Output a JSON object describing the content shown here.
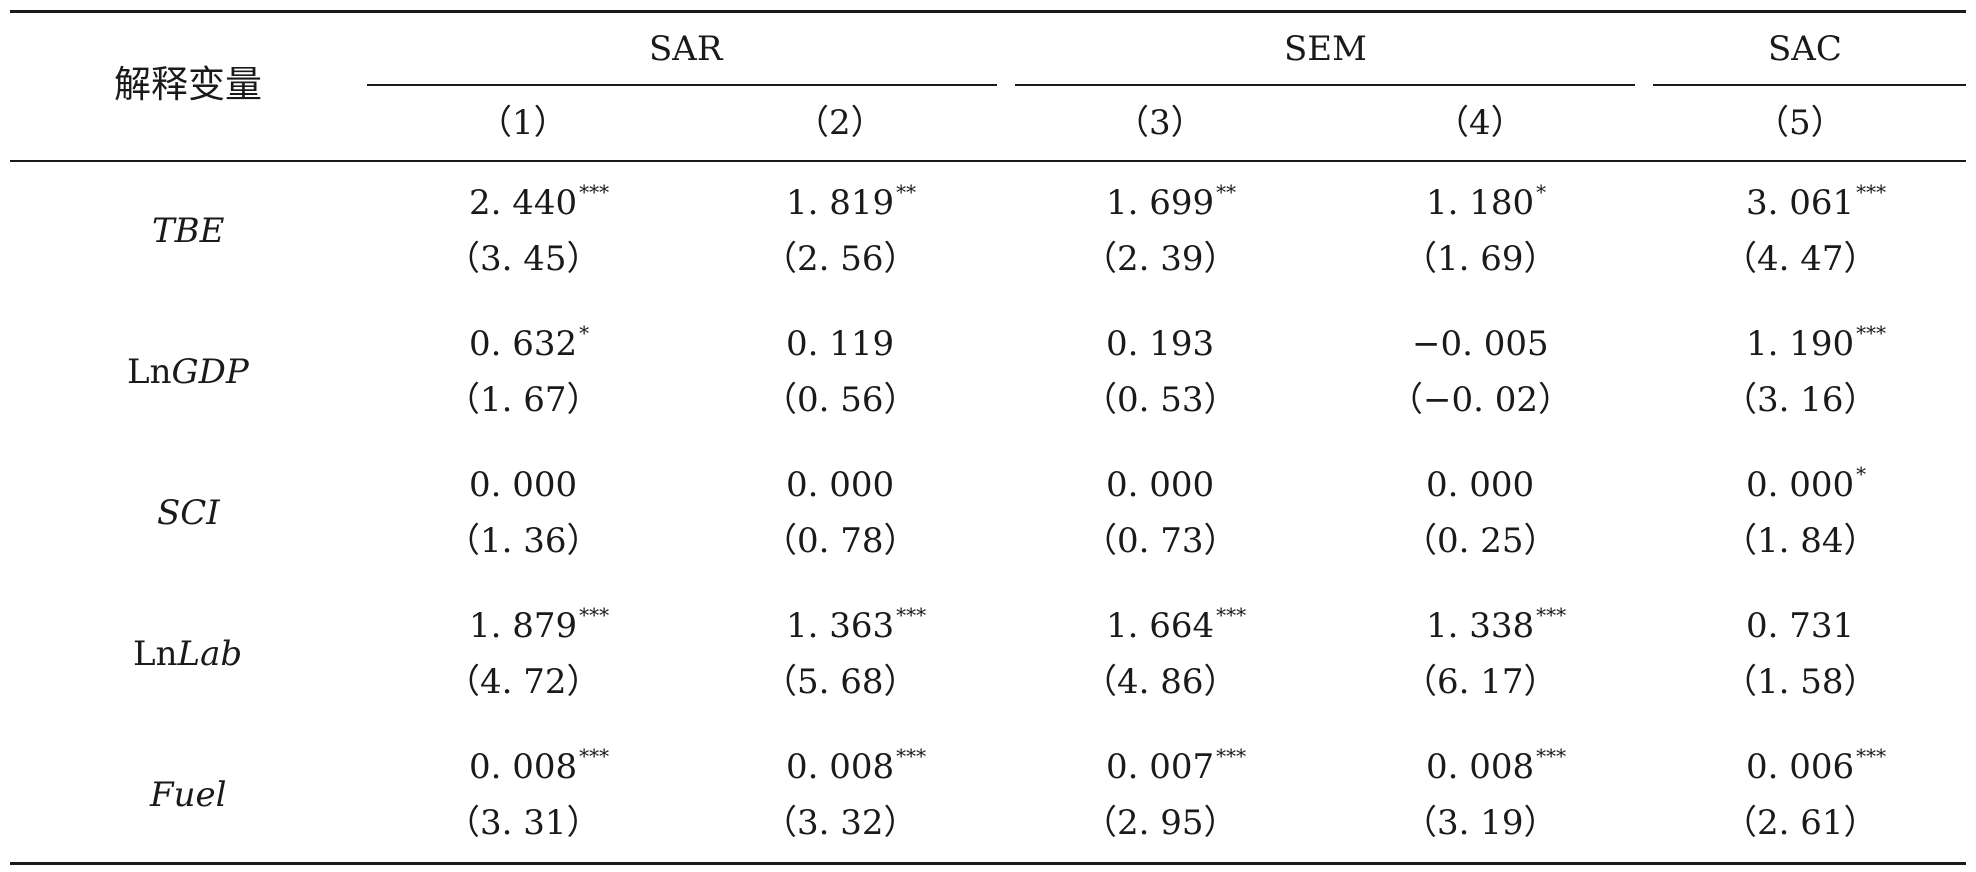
{
  "table": {
    "stub_header": "解释变量",
    "groups": [
      {
        "label": "SAR",
        "span": [
          0,
          1
        ]
      },
      {
        "label": "SEM",
        "span": [
          2,
          3
        ]
      },
      {
        "label": "SAC",
        "span": [
          4,
          4
        ]
      }
    ],
    "columns": [
      "（1）",
      "（2）",
      "（3）",
      "（4）",
      "（5）"
    ],
    "rows": [
      {
        "var_parts": [
          {
            "text": "TBE",
            "italic": true
          }
        ],
        "cells": [
          {
            "coef": "2. 440",
            "stars": "***",
            "t": "（3. 45）"
          },
          {
            "coef": "1. 819",
            "stars": "**",
            "t": "（2. 56）"
          },
          {
            "coef": "1. 699",
            "stars": "**",
            "t": "（2. 39）"
          },
          {
            "coef": "1. 180",
            "stars": "*",
            "t": "（1. 69）"
          },
          {
            "coef": "3. 061",
            "stars": "***",
            "t": "（4. 47）"
          }
        ]
      },
      {
        "var_parts": [
          {
            "text": "Ln",
            "italic": false
          },
          {
            "text": "GDP",
            "italic": true
          }
        ],
        "cells": [
          {
            "coef": "0. 632",
            "stars": "*",
            "t": "（1. 67）"
          },
          {
            "coef": "0. 119",
            "stars": "",
            "t": "（0. 56）"
          },
          {
            "coef": "0. 193",
            "stars": "",
            "t": "（0. 53）"
          },
          {
            "coef": "−0. 005",
            "stars": "",
            "t": "（−0. 02）"
          },
          {
            "coef": "1. 190",
            "stars": "***",
            "t": "（3. 16）"
          }
        ]
      },
      {
        "var_parts": [
          {
            "text": "SCI",
            "italic": true
          }
        ],
        "cells": [
          {
            "coef": "0. 000",
            "stars": "",
            "t": "（1. 36）"
          },
          {
            "coef": "0. 000",
            "stars": "",
            "t": "（0. 78）"
          },
          {
            "coef": "0. 000",
            "stars": "",
            "t": "（0. 73）"
          },
          {
            "coef": "0. 000",
            "stars": "",
            "t": "（0. 25）"
          },
          {
            "coef": "0. 000",
            "stars": "*",
            "t": "（1. 84）"
          }
        ]
      },
      {
        "var_parts": [
          {
            "text": "Ln",
            "italic": false
          },
          {
            "text": "Lab",
            "italic": true
          }
        ],
        "cells": [
          {
            "coef": "1. 879",
            "stars": "***",
            "t": "（4. 72）"
          },
          {
            "coef": "1. 363",
            "stars": "***",
            "t": "（5. 68）"
          },
          {
            "coef": "1. 664",
            "stars": "***",
            "t": "（4. 86）"
          },
          {
            "coef": "1. 338",
            "stars": "***",
            "t": "（6. 17）"
          },
          {
            "coef": "0. 731",
            "stars": "",
            "t": "（1. 58）"
          }
        ]
      },
      {
        "var_parts": [
          {
            "text": "Fuel",
            "italic": true
          }
        ],
        "cells": [
          {
            "coef": "0. 008",
            "stars": "***",
            "t": "（3. 31）"
          },
          {
            "coef": "0. 008",
            "stars": "***",
            "t": "（3. 32）"
          },
          {
            "coef": "0. 007",
            "stars": "***",
            "t": "（2. 95）"
          },
          {
            "coef": "0. 008",
            "stars": "***",
            "t": "（3. 19）"
          },
          {
            "coef": "0. 006",
            "stars": "***",
            "t": "（2. 61）"
          }
        ]
      }
    ]
  }
}
